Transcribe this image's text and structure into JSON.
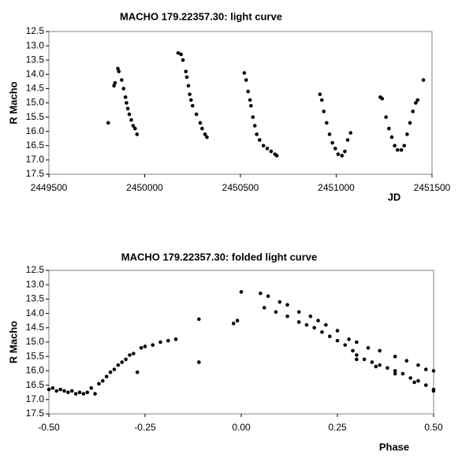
{
  "chart_data": [
    {
      "type": "scatter",
      "title": "MACHO 179.22357.30: light curve",
      "xlabel": "JD",
      "ylabel": "R Macho",
      "color": "#000000",
      "y_reversed": true,
      "grid": false,
      "xlim": [
        2449500,
        2451500
      ],
      "xticks": [
        2449500,
        2450000,
        2450500,
        2451000,
        2451500
      ],
      "ylim": [
        12.5,
        17.5
      ],
      "yticks": [
        12.5,
        {
          "value": 13,
          "label": "13.0"
        },
        13.5,
        {
          "value": 14,
          "label": "14.0"
        },
        14.5,
        {
          "value": 15,
          "label": "15.0"
        },
        15.5,
        {
          "value": 16,
          "label": "16.0"
        },
        16.5,
        {
          "value": 17,
          "label": "17.0"
        },
        17.5
      ],
      "x": [
        2449810,
        2449840,
        2449845,
        2449860,
        2449865,
        2449880,
        2449890,
        2449900,
        2449905,
        2449912,
        2449920,
        2449930,
        2449940,
        2449950,
        2449960,
        2450175,
        2450190,
        2450200,
        2450215,
        2450220,
        2450228,
        2450235,
        2450242,
        2450250,
        2450270,
        2450290,
        2450300,
        2450315,
        2450325,
        2450520,
        2450530,
        2450540,
        2450550,
        2450555,
        2450565,
        2450575,
        2450585,
        2450600,
        2450620,
        2450640,
        2450660,
        2450680,
        2450690,
        2450915,
        2450925,
        2450935,
        2450950,
        2450965,
        2450980,
        2450995,
        2451010,
        2451030,
        2451045,
        2451060,
        2451075,
        2451230,
        2451240,
        2451260,
        2451275,
        2451290,
        2451305,
        2451320,
        2451340,
        2451355,
        2451370,
        2451385,
        2451400,
        2451415,
        2451425,
        2451455
      ],
      "values": [
        15.7,
        14.4,
        14.3,
        13.8,
        13.9,
        14.2,
        14.5,
        14.8,
        15.0,
        15.2,
        15.4,
        15.6,
        15.8,
        15.9,
        16.1,
        13.25,
        13.3,
        13.5,
        13.9,
        14.1,
        14.4,
        14.7,
        14.9,
        15.1,
        15.4,
        15.7,
        15.9,
        16.1,
        16.2,
        13.95,
        14.2,
        14.6,
        14.9,
        15.1,
        15.5,
        15.8,
        16.1,
        16.3,
        16.5,
        16.6,
        16.7,
        16.8,
        16.85,
        14.7,
        14.9,
        15.3,
        15.7,
        16.1,
        16.4,
        16.6,
        16.8,
        16.85,
        16.7,
        16.3,
        16.05,
        14.8,
        14.85,
        15.5,
        15.9,
        16.2,
        16.5,
        16.65,
        16.65,
        16.5,
        16.1,
        15.7,
        15.3,
        15.0,
        14.9,
        14.2
      ]
    },
    {
      "type": "scatter",
      "title": "MACHO 179.22357.30: folded light curve",
      "xlabel": "Phase",
      "ylabel": "R Macho",
      "color": "#000000",
      "y_reversed": true,
      "grid": false,
      "xlim": [
        -0.5,
        0.5
      ],
      "xticks": [
        {
          "value": -0.5,
          "label": "-0.50"
        },
        {
          "value": -0.25,
          "label": "-0.25"
        },
        {
          "value": 0,
          "label": "0.00"
        },
        {
          "value": 0.25,
          "label": "0.25"
        },
        {
          "value": 0.5,
          "label": "0.50"
        }
      ],
      "ylim": [
        12.5,
        17.5
      ],
      "yticks": [
        12.5,
        {
          "value": 13,
          "label": "13.0"
        },
        13.5,
        {
          "value": 14,
          "label": "14.0"
        },
        14.5,
        {
          "value": 15,
          "label": "15.0"
        },
        15.5,
        {
          "value": 16,
          "label": "16.0"
        },
        16.5,
        {
          "value": 17,
          "label": "17.0"
        },
        17.5
      ],
      "x": [
        -0.5,
        -0.49,
        -0.48,
        -0.47,
        -0.46,
        -0.45,
        -0.44,
        -0.43,
        -0.42,
        -0.41,
        -0.4,
        -0.39,
        -0.38,
        -0.37,
        -0.36,
        -0.35,
        -0.34,
        -0.33,
        -0.32,
        -0.31,
        -0.3,
        -0.29,
        -0.28,
        -0.27,
        -0.26,
        -0.25,
        -0.23,
        -0.21,
        -0.19,
        -0.17,
        -0.11,
        -0.11,
        -0.02,
        -0.01,
        0.0,
        0.05,
        0.07,
        0.1,
        0.12,
        0.15,
        0.18,
        0.2,
        0.22,
        0.25,
        0.28,
        0.3,
        0.33,
        0.36,
        0.4,
        0.43,
        0.46,
        0.48,
        0.5,
        0.06,
        0.09,
        0.12,
        0.15,
        0.17,
        0.19,
        0.21,
        0.23,
        0.25,
        0.27,
        0.29,
        0.3,
        0.32,
        0.34,
        0.36,
        0.38,
        0.4,
        0.42,
        0.44,
        0.46,
        0.48,
        0.5,
        0.3,
        0.35,
        0.4,
        0.45,
        0.5
      ],
      "values": [
        16.65,
        16.6,
        16.7,
        16.65,
        16.7,
        16.75,
        16.7,
        16.8,
        16.75,
        16.8,
        16.75,
        16.6,
        16.8,
        16.45,
        16.35,
        16.2,
        16.05,
        15.95,
        15.8,
        15.7,
        15.6,
        15.45,
        15.4,
        16.05,
        15.2,
        15.15,
        15.1,
        15.0,
        14.95,
        14.9,
        14.2,
        15.7,
        14.35,
        14.25,
        13.25,
        13.3,
        13.4,
        13.6,
        13.7,
        13.95,
        14.1,
        14.25,
        14.4,
        14.6,
        14.9,
        15.0,
        15.2,
        15.3,
        15.5,
        15.65,
        15.8,
        15.95,
        16.0,
        13.8,
        13.95,
        14.1,
        14.3,
        14.4,
        14.5,
        14.65,
        14.8,
        14.95,
        15.1,
        15.3,
        15.45,
        15.6,
        15.7,
        15.8,
        15.9,
        16.0,
        16.1,
        16.25,
        16.35,
        16.5,
        16.65,
        15.6,
        15.85,
        16.1,
        16.4,
        16.7
      ]
    }
  ]
}
